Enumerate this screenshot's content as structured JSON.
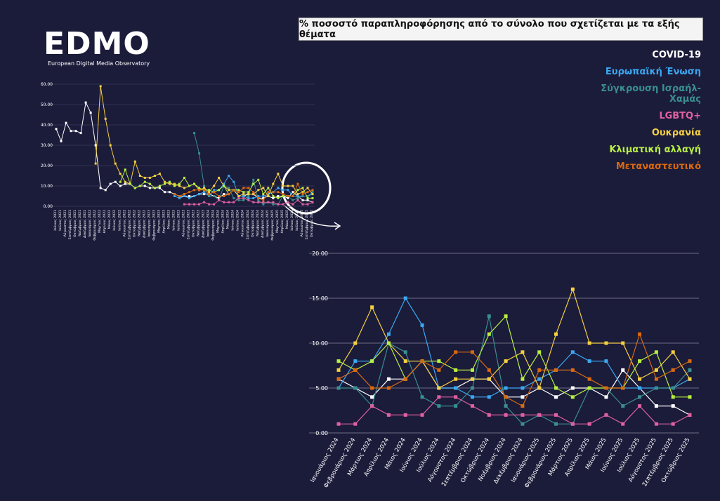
{
  "header": {
    "logo": "EDMO",
    "logo_subtitle": "European Digital Media Observatory",
    "title": "% ποσοστό παραπληροφόρησης από το σύνολο που σχετίζεται με τα εξής θέματα"
  },
  "chart_data": [
    {
      "type": "line",
      "categories": [
        "Ιούνιος 2021",
        "Ιούλιος 2021",
        "Αύγουστος 2021",
        "Σεπτέμβριος 2021",
        "Οκτώβριος 2021",
        "Νοέμβριος 2021",
        "Δεκέμβριος 2021",
        "Ιανουάριος 2022",
        "Φεβρουάριος 2022",
        "Μάρτιος 2022",
        "Απρίλιος 2022",
        "Μάιος 2022",
        "Ιούνιος 2022",
        "Ιούλιος 2022",
        "Αύγουστος 2022",
        "Σεπτέμβριος 2022",
        "Οκτώβριος 2022",
        "Νοέμβριος 2022",
        "Δεκέμβριος 2022",
        "Ιανουάριος 2023",
        "Φεβρουάριος 2023",
        "Μάρτιος 2023",
        "Απρίλιος 2023",
        "Μάιος 2023",
        "Ιούνιος 2023",
        "Ιούλιος 2023",
        "Αύγουστος 2023",
        "Σεπτέμβριος 2023",
        "Οκτώβριος 2023",
        "Νοέμβριος 2023",
        "Δεκέμβριος 2023",
        "Ιανουάριος 2024",
        "Φεβρουάριος 2024",
        "Μάρτιος 2024",
        "Απρίλιος 2024",
        "Μάιος 2024",
        "Ιούνιος 2024",
        "Ιούλιος 2024",
        "Αύγουστος 2024",
        "Σεπτέμβριος 2024",
        "Οκτώβριος 2024",
        "Νοέμβριος 2024",
        "Δεκέμβριος 2024",
        "Ιανουάριος 2025",
        "Φεβρουάριος 2025",
        "Μάρτιος 2025",
        "Απρίλιος 2025",
        "Μάιος 2025",
        "Ιούνιος 2025",
        "Ιούλιος 2025",
        "Αύγουστος 2025",
        "Σεπτέμβριος 2025",
        "Οκτώβριος 2025"
      ],
      "ylim": [
        0,
        60
      ],
      "yticks": [
        {
          "value": 0,
          "label": "0.00"
        },
        {
          "value": 10,
          "label": "10.00"
        },
        {
          "value": 20,
          "label": "20.00"
        },
        {
          "value": 30,
          "label": "30.00"
        },
        {
          "value": 40,
          "label": "40.00"
        },
        {
          "value": 50,
          "label": "50.00"
        },
        {
          "value": 60,
          "label": "60.00"
        }
      ],
      "grid": true,
      "series": [
        {
          "color": "#ffffff",
          "values": [
            38,
            32,
            41,
            37,
            37,
            36,
            51,
            46,
            30,
            9,
            8,
            11,
            12,
            10,
            11,
            11,
            9,
            10,
            10,
            9,
            9,
            9,
            7,
            7,
            6,
            5,
            5,
            5,
            5,
            6,
            6,
            6,
            5,
            4,
            6,
            6,
            8,
            5,
            5,
            6,
            6,
            4,
            4,
            5,
            4,
            5,
            5,
            4,
            7,
            5,
            3,
            3,
            2
          ]
        },
        {
          "color": "#3aa8f0",
          "values": [
            null,
            null,
            null,
            null,
            null,
            null,
            null,
            null,
            null,
            null,
            null,
            null,
            null,
            null,
            null,
            null,
            null,
            null,
            null,
            null,
            null,
            null,
            null,
            null,
            5,
            4,
            5,
            4,
            5,
            6,
            7,
            5,
            8,
            8,
            11,
            15,
            12,
            5,
            5,
            4,
            4,
            5,
            5,
            6,
            7,
            9,
            8,
            8,
            5,
            5,
            5,
            5,
            6
          ]
        },
        {
          "color": "#3a8f8f",
          "values": [
            null,
            null,
            null,
            null,
            null,
            null,
            null,
            null,
            null,
            null,
            null,
            null,
            null,
            null,
            null,
            null,
            null,
            null,
            null,
            null,
            null,
            null,
            null,
            null,
            null,
            null,
            null,
            null,
            36,
            26,
            10,
            5,
            5,
            3,
            10,
            9,
            4,
            3,
            3,
            5,
            13,
            3,
            1,
            2,
            1,
            1,
            5,
            5,
            3,
            4,
            5,
            5,
            7
          ]
        },
        {
          "color": "#e060a0",
          "values": [
            null,
            null,
            null,
            null,
            null,
            null,
            null,
            null,
            null,
            null,
            null,
            null,
            null,
            null,
            null,
            null,
            null,
            null,
            null,
            null,
            null,
            null,
            null,
            null,
            null,
            null,
            1,
            1,
            1,
            1,
            2,
            1,
            1,
            3,
            2,
            2,
            2,
            4,
            4,
            3,
            2,
            2,
            2,
            2,
            2,
            1,
            1,
            2,
            1,
            3,
            1,
            1,
            2
          ]
        },
        {
          "color": "#f5d040",
          "values": [
            null,
            null,
            null,
            null,
            null,
            null,
            null,
            null,
            21,
            59,
            43,
            30,
            21,
            16,
            12,
            11,
            22,
            15,
            14,
            14,
            15,
            16,
            12,
            11,
            11,
            10,
            9,
            10,
            11,
            8,
            9,
            7,
            10,
            14,
            10,
            8,
            8,
            5,
            6,
            6,
            6,
            8,
            9,
            5,
            11,
            16,
            10,
            10,
            10,
            6,
            7,
            9,
            6
          ]
        },
        {
          "color": "#b8f040",
          "values": [
            null,
            null,
            null,
            null,
            null,
            null,
            null,
            null,
            null,
            null,
            null,
            null,
            null,
            12,
            18,
            11,
            9,
            10,
            12,
            11,
            9,
            10,
            11,
            12,
            10,
            11,
            14,
            10,
            11,
            9,
            8,
            8,
            7,
            8,
            10,
            6,
            8,
            8,
            7,
            7,
            11,
            13,
            6,
            9,
            5,
            4,
            5,
            5,
            5,
            8,
            9,
            4,
            4
          ]
        },
        {
          "color": "#d86a10",
          "values": [
            null,
            null,
            null,
            null,
            null,
            null,
            null,
            null,
            null,
            null,
            null,
            null,
            null,
            null,
            null,
            null,
            null,
            null,
            null,
            null,
            null,
            null,
            null,
            null,
            6,
            5,
            6,
            7,
            8,
            8,
            8,
            6,
            7,
            5,
            5,
            6,
            8,
            7,
            9,
            9,
            7,
            4,
            3,
            7,
            7,
            7,
            6,
            5,
            5,
            11,
            6,
            7,
            8
          ]
        }
      ]
    },
    {
      "type": "line",
      "categories": [
        "Ιανουάριος 2024",
        "Φεβρουάριος 2024",
        "Μάρτιος 2024",
        "Απρίλιος 2024",
        "Μάιος 2024",
        "Ιούνιος 2024",
        "Ιούλιος 2024",
        "Αύγουστος 2024",
        "Σεπτέμβριος 2024",
        "Οκτώβριος 2024",
        "Νοέμβριος 2024",
        "Δεκέμβριος 2024",
        "Ιανουάριος 2025",
        "Φεβρουάριος 2025",
        "Μάρτιος 2025",
        "Απρίλιος 2025",
        "Μάιος 2025",
        "Ιούνιος 2025",
        "Ιούλιος 2025",
        "Αύγουστος 2025",
        "Σεπτέμβριος 2025",
        "Οκτώβριος 2025"
      ],
      "ylim": [
        0,
        20
      ],
      "yticks": [
        {
          "value": 0,
          "label": "0.00"
        },
        {
          "value": 5,
          "label": "5.00"
        },
        {
          "value": 10,
          "label": "10.00"
        },
        {
          "value": 15,
          "label": "15.00"
        },
        {
          "value": 20,
          "label": "20.00"
        }
      ],
      "grid": true,
      "series": [
        {
          "name": "COVID-19",
          "color": "#ffffff",
          "values": [
            6,
            5,
            4,
            6,
            6,
            8,
            5,
            5,
            6,
            6,
            4,
            4,
            5,
            4,
            5,
            5,
            4,
            7,
            5,
            3,
            3,
            2
          ]
        },
        {
          "name": "Ευρωπαϊκή Ένωση",
          "color": "#3aa8f0",
          "values": [
            5,
            8,
            8,
            11,
            15,
            12,
            5,
            5,
            4,
            4,
            5,
            5,
            6,
            7,
            9,
            8,
            8,
            5,
            5,
            5,
            5,
            6
          ]
        },
        {
          "name": "Σύγκρουση Ισραήλ-Χαμάς",
          "color": "#3a8f8f",
          "values": [
            5,
            5,
            3,
            10,
            9,
            4,
            3,
            3,
            5,
            13,
            3,
            1,
            2,
            1,
            1,
            5,
            5,
            3,
            4,
            5,
            5,
            7
          ]
        },
        {
          "name": "LGBTQ+",
          "color": "#e060a0",
          "values": [
            1,
            1,
            3,
            2,
            2,
            2,
            4,
            4,
            3,
            2,
            2,
            2,
            2,
            2,
            1,
            1,
            2,
            1,
            3,
            1,
            1,
            2
          ]
        },
        {
          "name": "Ουκρανία",
          "color": "#f5d040",
          "values": [
            7,
            10,
            14,
            10,
            8,
            8,
            5,
            6,
            6,
            6,
            8,
            9,
            5,
            11,
            16,
            10,
            10,
            10,
            6,
            7,
            9,
            6
          ]
        },
        {
          "name": "Κλιματική αλλαγή",
          "color": "#b8f040",
          "values": [
            8,
            7,
            8,
            10,
            6,
            8,
            8,
            7,
            7,
            11,
            13,
            6,
            9,
            5,
            4,
            5,
            5,
            5,
            8,
            9,
            4,
            4
          ]
        },
        {
          "name": "Μεταναστευτικό",
          "color": "#d86a10",
          "values": [
            6,
            7,
            5,
            5,
            6,
            8,
            7,
            9,
            9,
            7,
            4,
            3,
            7,
            7,
            7,
            6,
            5,
            5,
            11,
            6,
            7,
            8
          ]
        }
      ]
    }
  ]
}
